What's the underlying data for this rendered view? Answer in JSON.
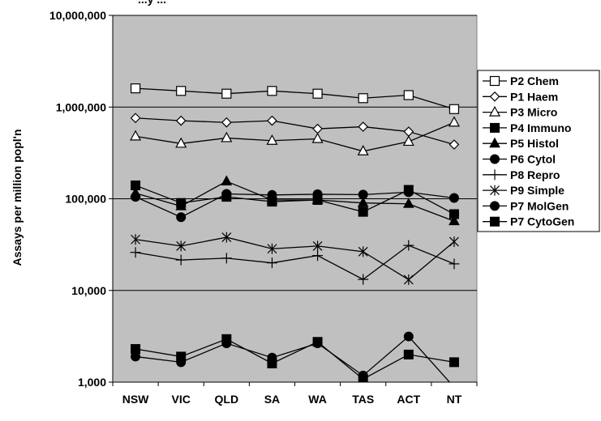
{
  "chart_data": {
    "type": "line",
    "title": "...y ...",
    "xlabel": "",
    "ylabel": "Assays per million popl'n",
    "yscale": "log",
    "ylim": [
      1000,
      10000000
    ],
    "yticks": [
      {
        "value": 1000,
        "label": "1,000"
      },
      {
        "value": 10000,
        "label": "10,000"
      },
      {
        "value": 100000,
        "label": "100,000"
      },
      {
        "value": 1000000,
        "label": "1,000,000"
      },
      {
        "value": 10000000,
        "label": "10,000,000"
      }
    ],
    "categories": [
      "NSW",
      "VIC",
      "QLD",
      "SA",
      "WA",
      "TAS",
      "ACT",
      "NT"
    ],
    "plot_background": "#c0c0c0",
    "grid": true,
    "legend_position": "right",
    "series": [
      {
        "name": "P2 Chem",
        "marker": "square-open",
        "values": [
          1600000,
          1500000,
          1400000,
          1500000,
          1400000,
          1250000,
          1350000,
          950000
        ]
      },
      {
        "name": "P1 Haem",
        "marker": "diamond-open",
        "values": [
          760000,
          710000,
          680000,
          710000,
          580000,
          610000,
          540000,
          390000
        ]
      },
      {
        "name": "P3 Micro",
        "marker": "triangle-open",
        "values": [
          480000,
          400000,
          460000,
          430000,
          450000,
          330000,
          420000,
          680000
        ]
      },
      {
        "name": "P4 Immuno",
        "marker": "square-filled",
        "values": [
          140000,
          90000,
          105000,
          93000,
          97000,
          72000,
          125000,
          68000
        ]
      },
      {
        "name": "P5 Histol",
        "marker": "triangle-filled",
        "values": [
          115000,
          83000,
          155000,
          97000,
          97000,
          90000,
          88000,
          57000
        ]
      },
      {
        "name": "P6 Cytol",
        "marker": "circle-filled",
        "values": [
          105000,
          63000,
          113000,
          110000,
          112000,
          111000,
          118000,
          102000
        ]
      },
      {
        "name": "P8 Repro",
        "marker": "plus",
        "values": [
          26000,
          21500,
          22500,
          20000,
          24000,
          13200,
          31000,
          19500
        ]
      },
      {
        "name": "P9 Simple",
        "marker": "asterisk",
        "values": [
          36000,
          30500,
          38000,
          28500,
          30500,
          26500,
          13100,
          34000
        ]
      },
      {
        "name": "P7 MolGen",
        "marker": "circle-filled",
        "values": [
          1900,
          1650,
          2650,
          1850,
          2650,
          1180,
          3150,
          880
        ]
      },
      {
        "name": "P7 CytoGen",
        "marker": "square-filled",
        "values": [
          2300,
          1900,
          2950,
          1600,
          2750,
          1080,
          2000,
          1650
        ]
      }
    ]
  }
}
